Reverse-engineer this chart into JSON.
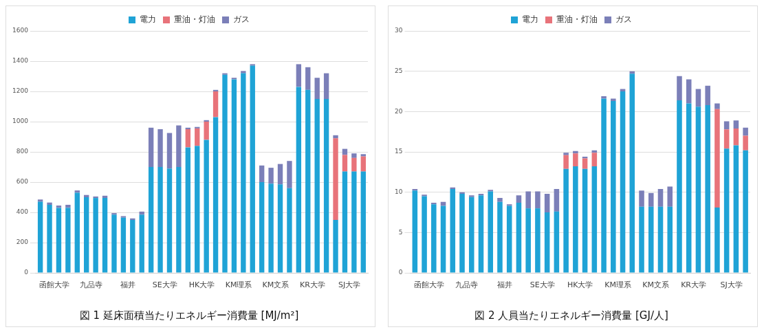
{
  "chart_data": [
    {
      "type": "bar",
      "title": "図 1 延床面積当たりエネルギー消費量 [MJ/m²]",
      "stacked": true,
      "legend": "top",
      "grid": "y",
      "categories": [
        null,
        null,
        null,
        null,
        null,
        null,
        null,
        null,
        null,
        null,
        null,
        null,
        null,
        null,
        null,
        null,
        null,
        null,
        null,
        null,
        null,
        null,
        null,
        null,
        null,
        null,
        null,
        null,
        null,
        null,
        null,
        null,
        null,
        null,
        null,
        null
      ],
      "ylim": [
        0,
        1600
      ],
      "yticks": [
        0,
        200,
        400,
        600,
        800,
        1000,
        1200,
        1400,
        1600
      ],
      "annotations": [
        "函館大学",
        "九品寺",
        "福井",
        "SE大学",
        "HK大学",
        "KM理系",
        "KM文系",
        "KR大学",
        "SJ大学"
      ],
      "series": [
        {
          "name": "電力",
          "color": "#1fa3d6",
          "values": [
            470,
            450,
            430,
            430,
            530,
            500,
            495,
            495,
            385,
            365,
            350,
            385,
            700,
            700,
            690,
            700,
            830,
            840,
            880,
            1030,
            1310,
            1280,
            1320,
            1370,
            600,
            590,
            585,
            560,
            1230,
            1210,
            1150,
            1150,
            350,
            670,
            670,
            670
          ]
        },
        {
          "name": "重油・灯油",
          "color": "#e8737a",
          "values": [
            0,
            0,
            0,
            0,
            0,
            0,
            0,
            0,
            0,
            0,
            0,
            0,
            0,
            0,
            0,
            0,
            120,
            115,
            120,
            170,
            0,
            0,
            0,
            0,
            0,
            0,
            0,
            0,
            0,
            0,
            0,
            0,
            540,
            110,
            90,
            100
          ]
        },
        {
          "name": "ガス",
          "color": "#7b7fb8",
          "values": [
            15,
            15,
            15,
            20,
            15,
            15,
            10,
            15,
            10,
            10,
            10,
            20,
            260,
            250,
            235,
            275,
            10,
            10,
            10,
            10,
            10,
            10,
            15,
            10,
            110,
            105,
            135,
            180,
            150,
            150,
            140,
            170,
            20,
            40,
            30,
            15
          ]
        }
      ]
    },
    {
      "type": "bar",
      "title": "図 2 人員当たりエネルギー消費量 [GJ/人]",
      "stacked": true,
      "legend": "top",
      "grid": "y",
      "categories": [
        null,
        null,
        null,
        null,
        null,
        null,
        null,
        null,
        null,
        null,
        null,
        null,
        null,
        null,
        null,
        null,
        null,
        null,
        null,
        null,
        null,
        null,
        null,
        null,
        null,
        null,
        null,
        null,
        null,
        null,
        null,
        null,
        null,
        null,
        null,
        null
      ],
      "ylim": [
        0,
        30
      ],
      "yticks": [
        0,
        5,
        10,
        15,
        20,
        25,
        30
      ],
      "annotations": [
        "函館大学",
        "九品寺",
        "福井",
        "SE大学",
        "HK大学",
        "KM理系",
        "KM文系",
        "KR大学",
        "SJ大学"
      ],
      "series": [
        {
          "name": "電力",
          "color": "#1fa3d6",
          "values": [
            10.2,
            9.5,
            8.5,
            8.3,
            10.4,
            9.8,
            9.4,
            9.6,
            10.1,
            8.8,
            8.3,
            8.7,
            8.0,
            8.0,
            7.5,
            7.6,
            12.9,
            13.2,
            12.9,
            13.2,
            21.6,
            21.3,
            22.5,
            24.7,
            8.2,
            8.2,
            8.2,
            8.2,
            21.4,
            21.0,
            20.6,
            20.8,
            8.1,
            15.4,
            15.8,
            15.2
          ]
        },
        {
          "name": "重油・灯油",
          "color": "#e8737a",
          "values": [
            0,
            0,
            0,
            0,
            0,
            0,
            0,
            0,
            0,
            0,
            0,
            0,
            0,
            0,
            0,
            0,
            1.7,
            1.6,
            1.3,
            1.7,
            0,
            0,
            0,
            0,
            0,
            0,
            0,
            0,
            0,
            0,
            0,
            0,
            12.2,
            2.4,
            2.1,
            1.8
          ]
        },
        {
          "name": "ガス",
          "color": "#7b7fb8",
          "values": [
            0.2,
            0.2,
            0.2,
            0.5,
            0.2,
            0.2,
            0.2,
            0.2,
            0.2,
            0.5,
            0.2,
            0.9,
            2.1,
            2.1,
            2.3,
            2.8,
            0.3,
            0.3,
            0.2,
            0.3,
            0.3,
            0.3,
            0.3,
            0.3,
            2.0,
            1.7,
            2.2,
            2.5,
            3.0,
            3.0,
            2.2,
            2.4,
            0.7,
            1.0,
            1.0,
            1.0
          ]
        }
      ]
    }
  ]
}
